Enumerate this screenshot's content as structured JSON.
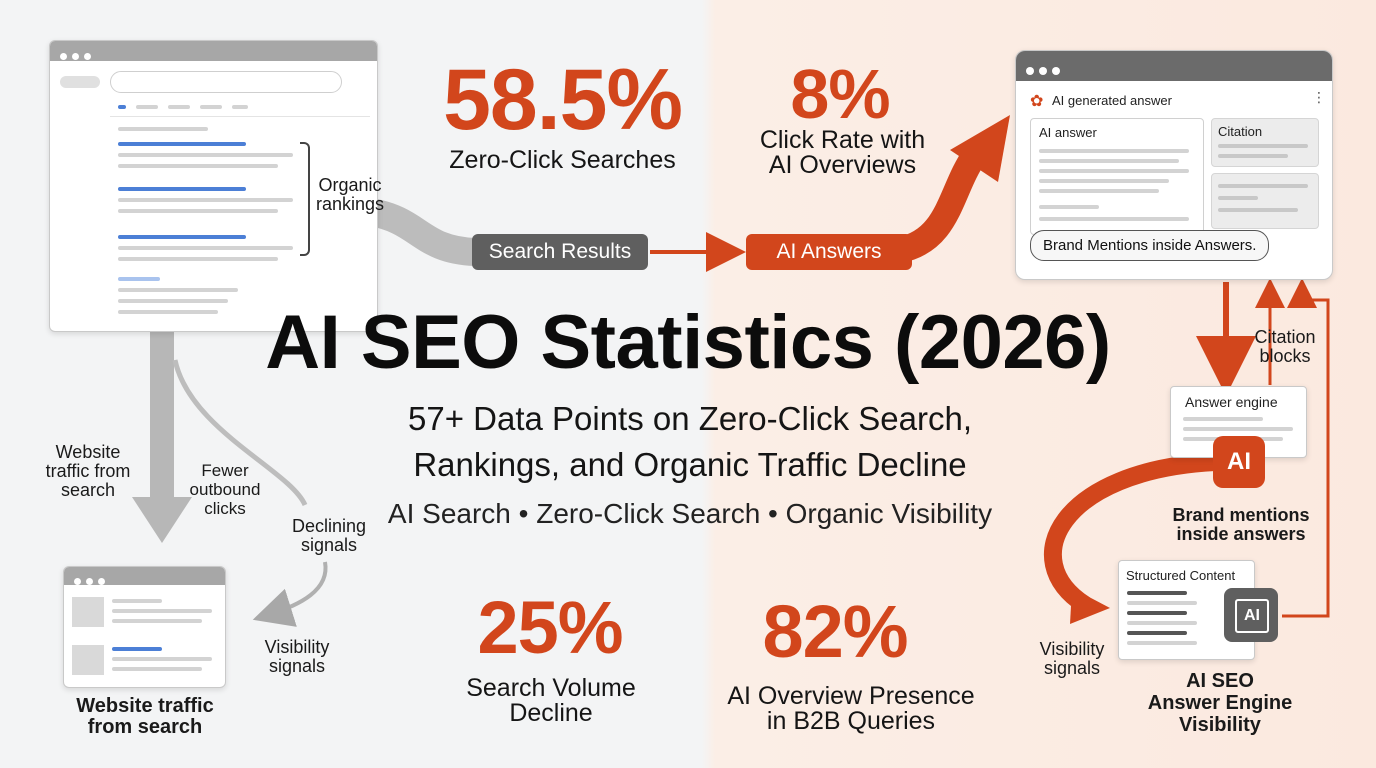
{
  "title": "AI SEO Statistics (2026)",
  "subtitle_line1": "57+ Data Points on Zero-Click Search,",
  "subtitle_line2": "Rankings, and Organic Traffic Decline",
  "tags": "AI Search • Zero-Click Search • Organic Visibility",
  "stats": [
    {
      "value": "58.5%",
      "label_line1": "Zero-Click Searches",
      "label_line2": ""
    },
    {
      "value": "8%",
      "label_line1": "Click Rate with",
      "label_line2": "AI Overviews"
    },
    {
      "value": "25%",
      "label_line1": "Search Volume",
      "label_line2": "Decline"
    },
    {
      "value": "82%",
      "label_line1": "AI Overview Presence",
      "label_line2": "in B2B Queries"
    }
  ],
  "pills": {
    "search_results": "Search Results",
    "ai_answers": "AI Answers"
  },
  "left": {
    "organic_rankings_1": "Organic",
    "organic_rankings_2": "rankings",
    "website_traffic_1": "Website",
    "website_traffic_2": "traffic from",
    "website_traffic_3": "search",
    "fewer_1": "Fewer",
    "fewer_2": "outbound",
    "fewer_3": "clicks",
    "declining_1": "Declining",
    "declining_2": "signals",
    "visibility_1": "Visibility",
    "visibility_2": "signals",
    "bottom_1": "Website traffic",
    "bottom_2": "from search"
  },
  "right": {
    "window_title": "AI generated answer",
    "ai_answer": "AI answer",
    "citation": "Citation",
    "brand_mentions_bubble": "Brand Mentions inside Answers.",
    "citation_blocks_1": "Citation",
    "citation_blocks_2": "blocks",
    "answer_engine": "Answer engine",
    "ai_badge": "AI",
    "brand_mentions_1": "Brand mentions",
    "brand_mentions_2": "inside answers",
    "structured_content": "Structured Content",
    "chip_ai": "AI",
    "visibility_1": "Visibility",
    "visibility_2": "signals",
    "ai_seo_1": "AI SEO",
    "ai_seo_2": "Answer Engine",
    "ai_seo_3": "Visibility"
  },
  "colors": {
    "accent": "#d2461c",
    "dark_pill": "#5f5f5f",
    "blue_line": "#4c7fd6"
  }
}
